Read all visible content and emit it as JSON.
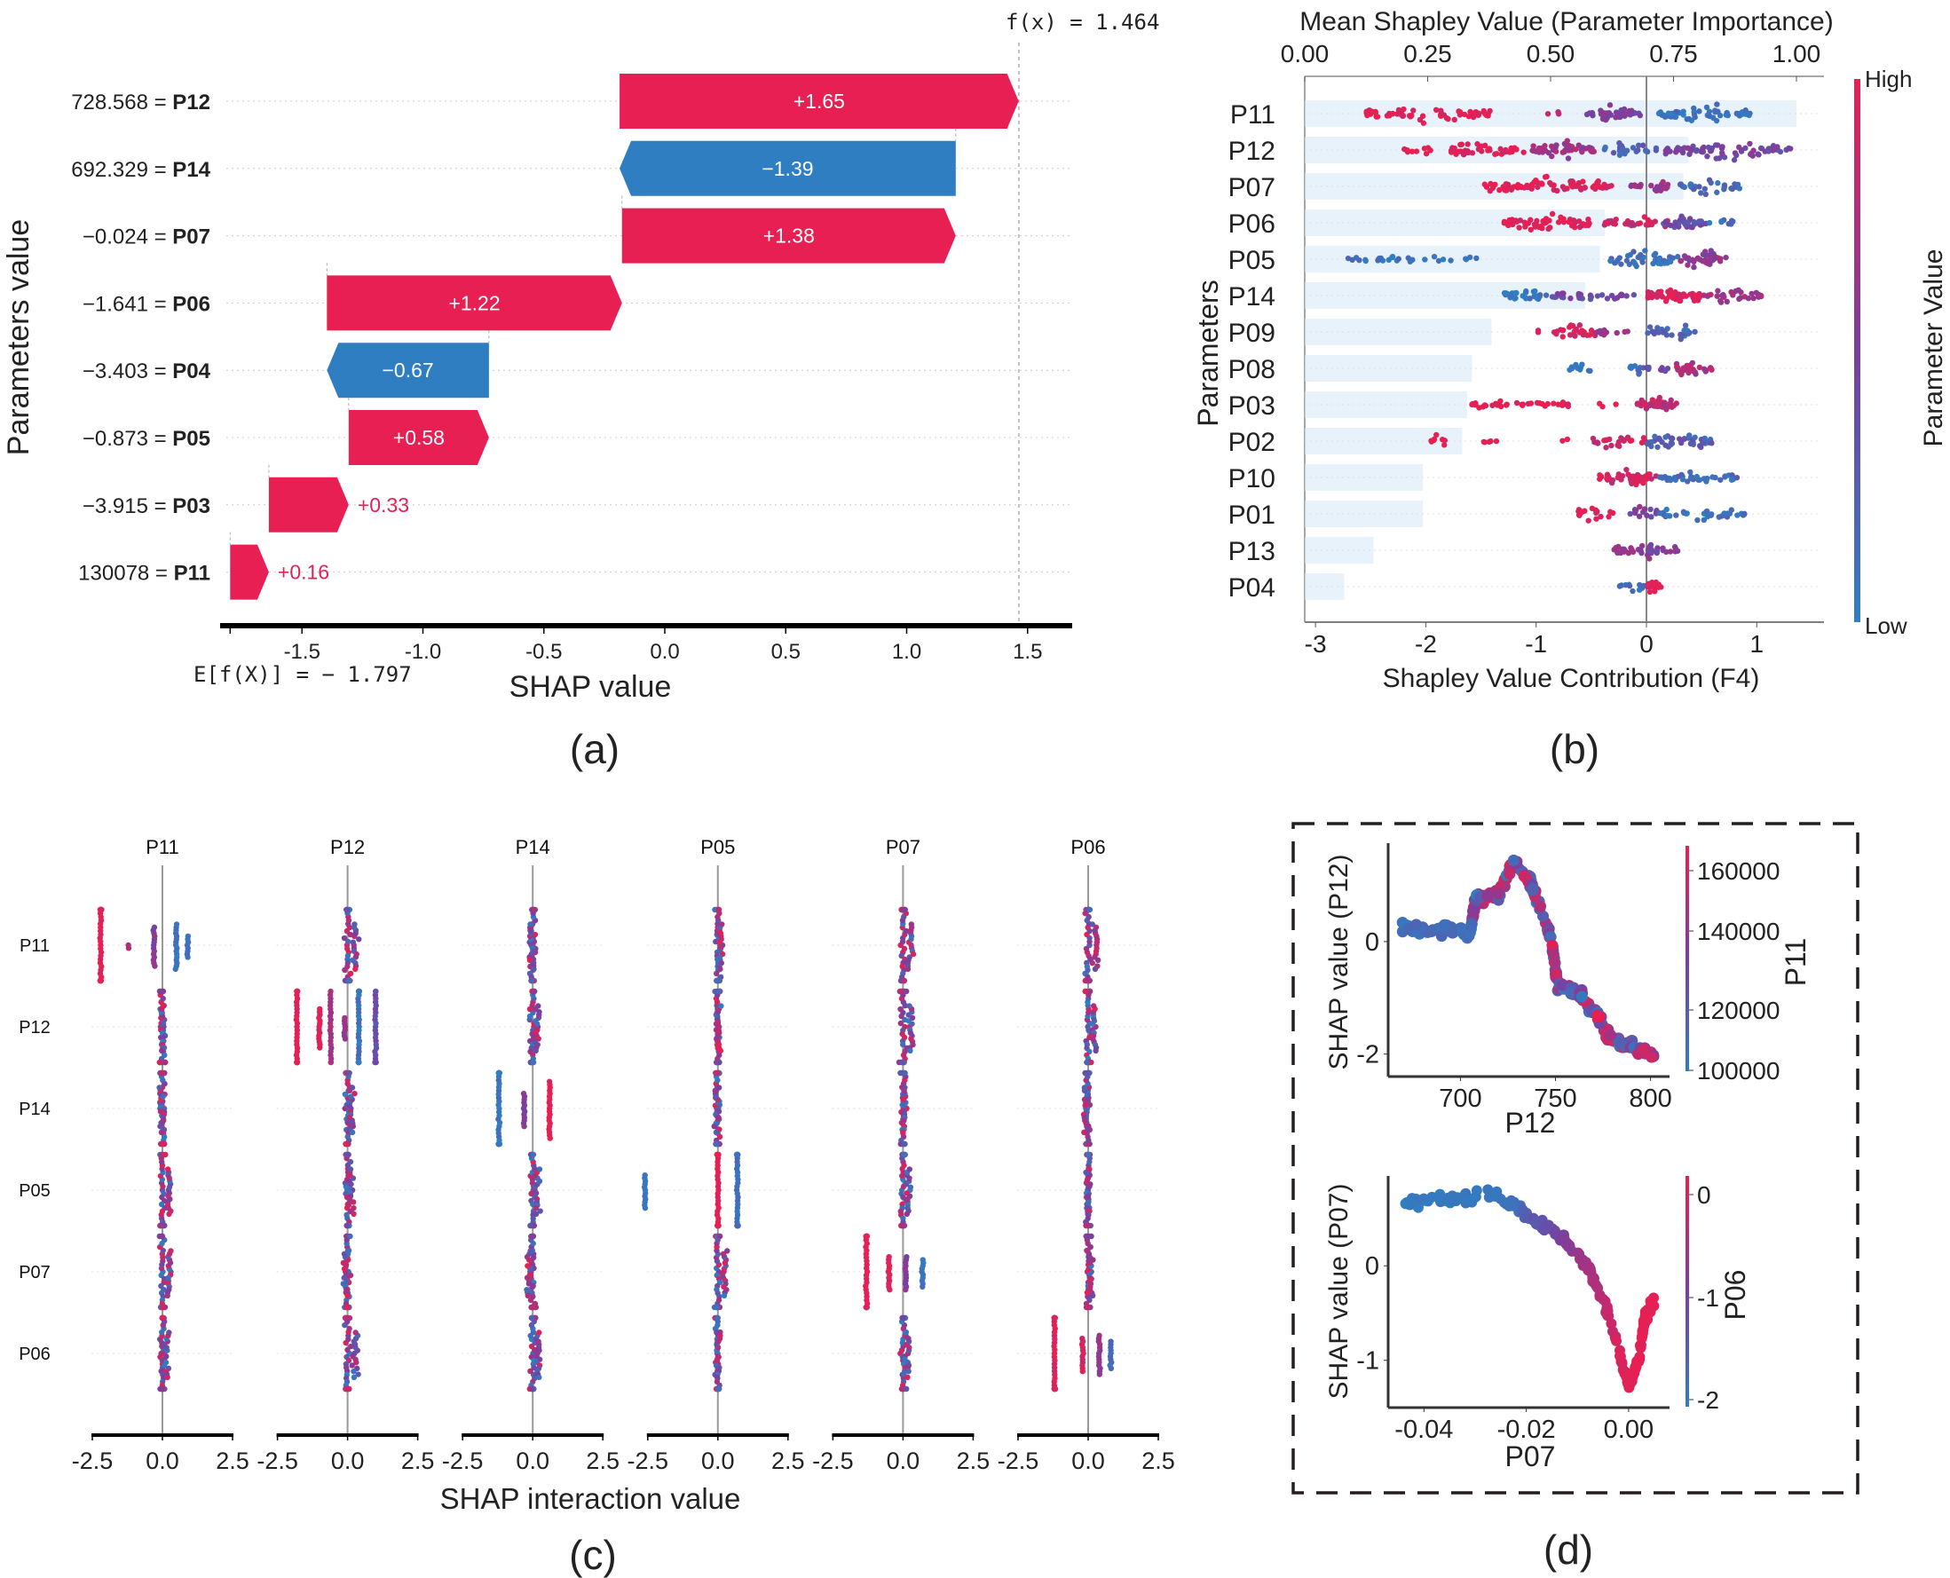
{
  "colors": {
    "positive": "#e81f52",
    "negative": "#2f7ec2",
    "purple": "#7a3fa0",
    "bar_bg": "#d9e9f6"
  },
  "chart_data": [
    {
      "panel": "(a)",
      "type": "bar",
      "subtype": "waterfall",
      "ylabel": "Parameters value",
      "xlabel": "SHAP value",
      "xlim": [
        -1.85,
        1.65
      ],
      "xticks": [
        "-1.5",
        "-1.0",
        "-0.5",
        "0.0",
        "0.5",
        "1.0",
        "1.5"
      ],
      "base_label": "E[f(X)]  = − 1.797",
      "base_value": -1.797,
      "output_label": "f(x) = 1.464",
      "output_value": 1.464,
      "rows": [
        {
          "value": "728.568",
          "param": "P12",
          "shap": 1.65,
          "label": "+1.65"
        },
        {
          "value": "692.329",
          "param": "P14",
          "shap": -1.39,
          "label": "−1.39"
        },
        {
          "value": "−0.024",
          "param": "P07",
          "shap": 1.38,
          "label": "+1.38"
        },
        {
          "value": "−1.641",
          "param": "P06",
          "shap": 1.22,
          "label": "+1.22"
        },
        {
          "value": "−3.403",
          "param": "P04",
          "shap": -0.67,
          "label": "−0.67"
        },
        {
          "value": "−0.873",
          "param": "P05",
          "shap": 0.58,
          "label": "+0.58"
        },
        {
          "value": "−3.915",
          "param": "P03",
          "shap": 0.33,
          "label": "+0.33"
        },
        {
          "value": "130078",
          "param": "P11",
          "shap": 0.16,
          "label": "+0.16"
        }
      ]
    },
    {
      "panel": "(b)",
      "type": "scatter",
      "subtype": "beeswarm with mean importance bars",
      "top_title": "Mean Shapley Value (Parameter Importance)",
      "top_xticks": [
        "0.00",
        "0.25",
        "0.50",
        "0.75",
        "1.00"
      ],
      "top_xlim": [
        0,
        1.0
      ],
      "xlabel": "Shapley Value Contribution (F4)",
      "xticks": [
        "-3",
        "-2",
        "-1",
        "0",
        "1"
      ],
      "xlim": [
        -3.1,
        1.6
      ],
      "ylabel": "Parameters",
      "colorbar_label": "Parameter Value",
      "colorbar_high": "High",
      "colorbar_low": "Low",
      "rows": [
        {
          "param": "P11",
          "importance": 1.0,
          "clusters": [
            [
              -2.55,
              -1.4,
              60,
              1.0
            ],
            [
              -0.9,
              -0.75,
              3,
              0.7
            ],
            [
              -0.55,
              -0.05,
              40,
              0.5
            ],
            [
              0.1,
              0.95,
              60,
              0.08
            ]
          ]
        },
        {
          "param": "P12",
          "importance": 0.78,
          "clusters": [
            [
              -2.2,
              -1.95,
              10,
              1.0
            ],
            [
              -1.8,
              -1.4,
              30,
              1.0
            ],
            [
              -1.4,
              -1.1,
              15,
              0.95
            ],
            [
              -1.05,
              -0.45,
              50,
              0.65
            ],
            [
              -0.4,
              0.1,
              25,
              0.2
            ],
            [
              0.15,
              1.35,
              70,
              0.45
            ]
          ]
        },
        {
          "param": "P07",
          "importance": 0.77,
          "clusters": [
            [
              -1.5,
              -0.3,
              80,
              1.0
            ],
            [
              -0.15,
              0.25,
              20,
              0.6
            ],
            [
              0.3,
              0.85,
              30,
              0.15
            ]
          ]
        },
        {
          "param": "P06",
          "importance": 0.61,
          "clusters": [
            [
              -1.3,
              -0.5,
              60,
              1.0
            ],
            [
              -0.4,
              0.2,
              30,
              0.85
            ],
            [
              0.15,
              0.55,
              35,
              0.4
            ],
            [
              0.55,
              0.8,
              8,
              0.1
            ]
          ]
        },
        {
          "param": "P05",
          "importance": 0.6,
          "clusters": [
            [
              -2.9,
              -1.5,
              30,
              0.05
            ],
            [
              -0.35,
              0.3,
              40,
              0.1
            ],
            [
              0.3,
              0.75,
              40,
              0.6
            ]
          ]
        },
        {
          "param": "P14",
          "importance": 0.57,
          "clusters": [
            [
              -1.3,
              -0.9,
              30,
              0.05
            ],
            [
              -0.9,
              -0.1,
              30,
              0.4
            ],
            [
              0.0,
              0.5,
              50,
              0.95
            ],
            [
              0.5,
              1.05,
              30,
              0.7
            ]
          ]
        },
        {
          "param": "P09",
          "importance": 0.38,
          "clusters": [
            [
              -1.0,
              -0.45,
              30,
              0.95
            ],
            [
              -0.45,
              -0.1,
              12,
              0.6
            ],
            [
              0.0,
              0.45,
              30,
              0.2
            ]
          ]
        },
        {
          "param": "P08",
          "importance": 0.34,
          "clusters": [
            [
              -0.7,
              -0.5,
              12,
              0.05
            ],
            [
              -0.2,
              0.0,
              10,
              0.1
            ],
            [
              0.0,
              0.25,
              8,
              0.4
            ],
            [
              0.25,
              0.6,
              35,
              0.75
            ]
          ]
        },
        {
          "param": "P03",
          "importance": 0.33,
          "clusters": [
            [
              -1.6,
              -0.7,
              35,
              1.0
            ],
            [
              -0.45,
              -0.25,
              3,
              1.0
            ],
            [
              -0.15,
              0.3,
              35,
              0.8
            ]
          ]
        },
        {
          "param": "P02",
          "importance": 0.32,
          "clusters": [
            [
              -2.0,
              -1.8,
              8,
              1.0
            ],
            [
              -1.55,
              -1.35,
              5,
              1.0
            ],
            [
              -0.8,
              -0.7,
              2,
              1.0
            ],
            [
              -0.5,
              0.0,
              25,
              0.9
            ],
            [
              0.0,
              0.6,
              50,
              0.25
            ]
          ]
        },
        {
          "param": "P10",
          "importance": 0.24,
          "clusters": [
            [
              -0.45,
              0.1,
              50,
              0.9
            ],
            [
              0.1,
              0.85,
              40,
              0.15
            ]
          ]
        },
        {
          "param": "P01",
          "importance": 0.24,
          "clusters": [
            [
              -0.65,
              -0.3,
              18,
              1.0
            ],
            [
              -0.15,
              0.1,
              15,
              0.5
            ],
            [
              0.1,
              0.9,
              35,
              0.1
            ]
          ]
        },
        {
          "param": "P13",
          "importance": 0.14,
          "clusters": [
            [
              -0.3,
              -0.1,
              20,
              0.6
            ],
            [
              -0.1,
              0.3,
              25,
              0.5
            ]
          ]
        },
        {
          "param": "P04",
          "importance": 0.08,
          "clusters": [
            [
              -0.25,
              0.0,
              12,
              0.1
            ],
            [
              0.0,
              0.15,
              18,
              1.0
            ]
          ]
        }
      ]
    },
    {
      "panel": "(c)",
      "type": "scatter",
      "subtype": "SHAP interaction summary matrix",
      "xlabel": "SHAP interaction value",
      "xticks": [
        "-2.5",
        "0.0",
        "2.5"
      ],
      "xlim": [
        -2.9,
        2.9
      ],
      "params": [
        "P11",
        "P12",
        "P14",
        "P05",
        "P07",
        "P06"
      ],
      "diagonal": {
        "P11": [
          [
            -2.2,
            40,
            1.0
          ],
          [
            -1.2,
            2,
            0.7
          ],
          [
            -0.3,
            14,
            0.55
          ],
          [
            0.5,
            16,
            0.1
          ],
          [
            0.9,
            8,
            0.15
          ]
        ],
        "P12": [
          [
            -1.8,
            34,
            1.0
          ],
          [
            -1.0,
            14,
            0.95
          ],
          [
            -0.6,
            22,
            0.7
          ],
          [
            -0.1,
            8,
            0.6
          ],
          [
            0.4,
            30,
            0.1
          ],
          [
            1.0,
            24,
            0.4
          ]
        ],
        "P14": [
          [
            -1.2,
            40,
            0.05
          ],
          [
            -0.3,
            12,
            0.55
          ],
          [
            0.6,
            20,
            1.0
          ]
        ],
        "P05": [
          [
            -2.6,
            12,
            0.05
          ],
          [
            0.0,
            40,
            1.0
          ],
          [
            0.7,
            40,
            0.1
          ]
        ],
        "P07": [
          [
            -1.3,
            40,
            1.0
          ],
          [
            -0.5,
            12,
            0.95
          ],
          [
            0.1,
            12,
            0.55
          ],
          [
            0.7,
            10,
            0.1
          ]
        ],
        "P06": [
          [
            -1.2,
            44,
            1.0
          ],
          [
            -0.2,
            12,
            0.95
          ],
          [
            0.4,
            14,
            0.6
          ],
          [
            0.8,
            10,
            0.1
          ]
        ]
      },
      "off_diagonal_spread": 0.3
    },
    {
      "panel": "(d) top",
      "type": "scatter",
      "subtype": "dependence",
      "xlabel": "P12",
      "ylabel": "SHAP value (P12)",
      "xticks": [
        "700",
        "750",
        "800"
      ],
      "yticks": [
        "0",
        "-2"
      ],
      "xlim": [
        662,
        810
      ],
      "ylim": [
        -2.4,
        1.75
      ],
      "colorbar_label": "P11",
      "colorbar_ticks": [
        "160000",
        "140000",
        "120000",
        "100000"
      ],
      "colorbar_range": [
        99000,
        167000
      ],
      "trend": [
        [
          668,
          0.25
        ],
        [
          690,
          0.2
        ],
        [
          705,
          0.15
        ],
        [
          708,
          0.75
        ],
        [
          720,
          0.85
        ],
        [
          728,
          1.4
        ],
        [
          738,
          1.0
        ],
        [
          748,
          0.0
        ],
        [
          751,
          -0.75
        ],
        [
          762,
          -0.9
        ],
        [
          772,
          -1.3
        ],
        [
          778,
          -1.7
        ],
        [
          790,
          -1.85
        ],
        [
          802,
          -2.05
        ]
      ]
    },
    {
      "panel": "(d) bottom",
      "type": "scatter",
      "subtype": "dependence",
      "xlabel": "P07",
      "ylabel": "SHAP value (P07)",
      "xticks": [
        "-0.04",
        "-0.02",
        "0.00"
      ],
      "yticks": [
        "0",
        "-1"
      ],
      "xlim": [
        -0.047,
        0.008
      ],
      "ylim": [
        -1.5,
        0.95
      ],
      "colorbar_label": "P06",
      "colorbar_ticks": [
        "0",
        "-1",
        "-2"
      ],
      "colorbar_range": [
        -2.05,
        0.15
      ],
      "trend": [
        [
          -0.0445,
          0.68
        ],
        [
          -0.035,
          0.7
        ],
        [
          -0.026,
          0.76
        ],
        [
          -0.02,
          0.55
        ],
        [
          -0.013,
          0.3
        ],
        [
          -0.008,
          0.0
        ],
        [
          -0.004,
          -0.5
        ],
        [
          0.0,
          -1.25
        ],
        [
          0.002,
          -1.0
        ],
        [
          0.003,
          -0.6
        ],
        [
          0.005,
          -0.35
        ]
      ]
    }
  ],
  "panel_labels": {
    "a": "(a)",
    "b": "(b)",
    "c": "(c)",
    "d": "(d)"
  }
}
